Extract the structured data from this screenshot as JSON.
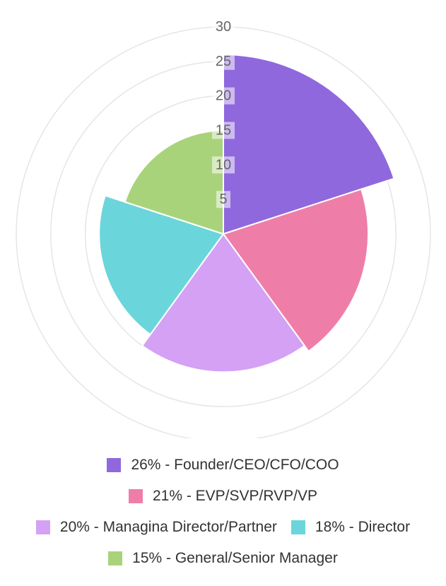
{
  "chart_data": {
    "type": "polar-area",
    "title": "",
    "r_range": [
      0,
      30
    ],
    "r_ticks": [
      5,
      10,
      15,
      20,
      25,
      30
    ],
    "grid": true,
    "legend_position": "bottom",
    "series": [
      {
        "label": "26% - Founder/CEO/CFO/COO",
        "value": 26,
        "color": "#8f68dd"
      },
      {
        "label": "21% - EVP/SVP/RVP/VP",
        "value": 21,
        "color": "#ee7ea8"
      },
      {
        "label": "20% - Managina Director/Partner",
        "value": 20,
        "color": "#d4a1f5"
      },
      {
        "label": "18% - Director",
        "value": 18,
        "color": "#6ad6db"
      },
      {
        "label": "15% - General/Senior Manager",
        "value": 15,
        "color": "#a9d37b"
      }
    ]
  }
}
